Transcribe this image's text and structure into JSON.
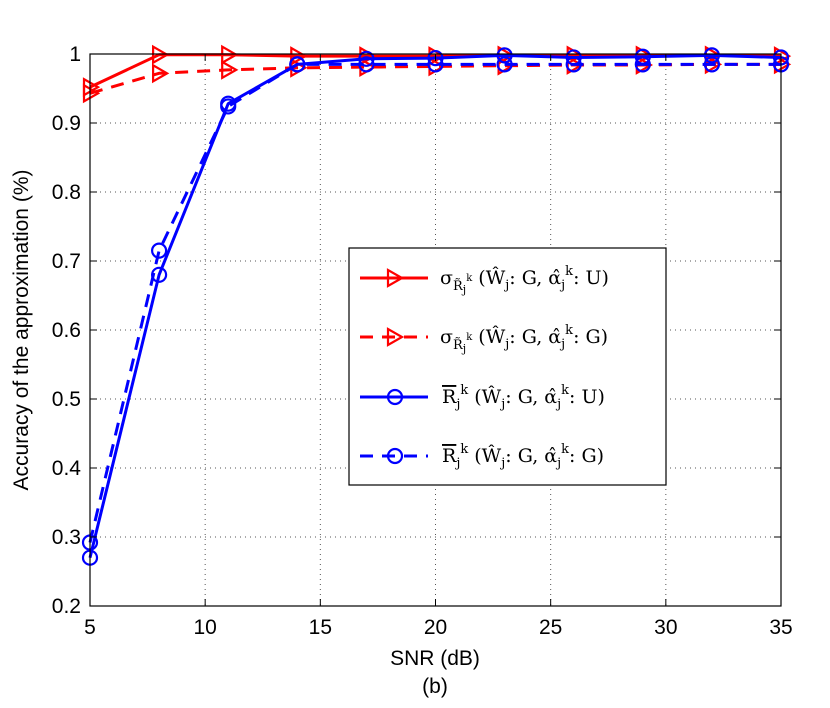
{
  "chart_data": {
    "type": "line",
    "xlabel": "SNR (dB)",
    "subcaption": "(b)",
    "ylabel": "Accuracy of the approximation (%)",
    "xlim": [
      5,
      35
    ],
    "ylim": [
      0.2,
      1
    ],
    "x_ticks": [
      "5",
      "10",
      "15",
      "20",
      "25",
      "30",
      "35"
    ],
    "y_ticks": [
      "0.2",
      "0.3",
      "0.4",
      "0.5",
      "0.6",
      "0.7",
      "0.8",
      "0.9",
      "1"
    ],
    "grid": true,
    "legend_position": "center-right",
    "x": [
      5,
      8,
      11,
      14,
      17,
      20,
      23,
      26,
      29,
      32,
      35
    ],
    "series": [
      {
        "name": "σ_{R̃_j^k} (Ŵ_j: G, α̂_j^k: U)",
        "color": "#ff0000",
        "style": "solid",
        "marker": "triangle-right",
        "values": [
          0.952,
          0.999,
          0.999,
          0.997,
          0.997,
          0.997,
          0.998,
          0.998,
          0.998,
          0.998,
          0.997
        ]
      },
      {
        "name": "σ_{R̃_j^k} (Ŵ_j: G, α̂_j^k: G)",
        "color": "#ff0000",
        "style": "dashed",
        "marker": "triangle-right",
        "values": [
          0.943,
          0.972,
          0.977,
          0.98,
          0.981,
          0.982,
          0.983,
          0.984,
          0.984,
          0.985,
          0.985
        ]
      },
      {
        "name": "R̃_j^k (Ŵ_j: G, α̂_j^k: U)",
        "color": "#0000ff",
        "style": "solid",
        "marker": "circle",
        "values": [
          0.27,
          0.68,
          0.928,
          0.985,
          0.993,
          0.994,
          0.998,
          0.995,
          0.996,
          0.998,
          0.995
        ]
      },
      {
        "name": "R̃_j^k (Ŵ_j: G, α̂_j^k: G)",
        "color": "#0000ff",
        "style": "dashed",
        "marker": "circle",
        "values": [
          0.292,
          0.715,
          0.924,
          0.985,
          0.985,
          0.985,
          0.985,
          0.985,
          0.985,
          0.985,
          0.985
        ]
      }
    ]
  }
}
